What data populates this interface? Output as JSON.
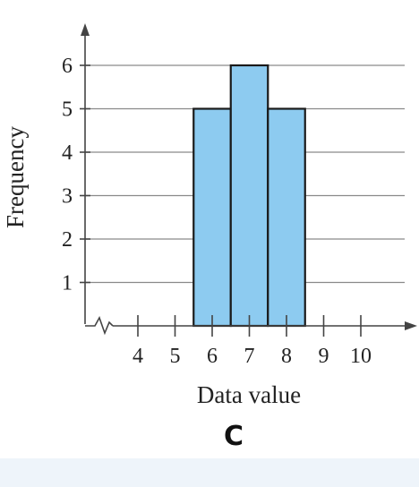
{
  "chart_data": {
    "type": "bar",
    "categories": [
      "6",
      "7",
      "8"
    ],
    "values": [
      5,
      6,
      5
    ],
    "xlabel": "Data value",
    "ylabel": "Frequency",
    "xlim": [
      3.5,
      10.5
    ],
    "ylim": [
      0,
      6
    ],
    "x_ticks": [
      "4",
      "5",
      "6",
      "7",
      "8",
      "9",
      "10"
    ],
    "y_ticks": [
      "1",
      "2",
      "3",
      "4",
      "5",
      "6"
    ],
    "grid": true,
    "bar_color": "#8dcbf0",
    "axis_break": "x"
  },
  "panel_label": "C"
}
